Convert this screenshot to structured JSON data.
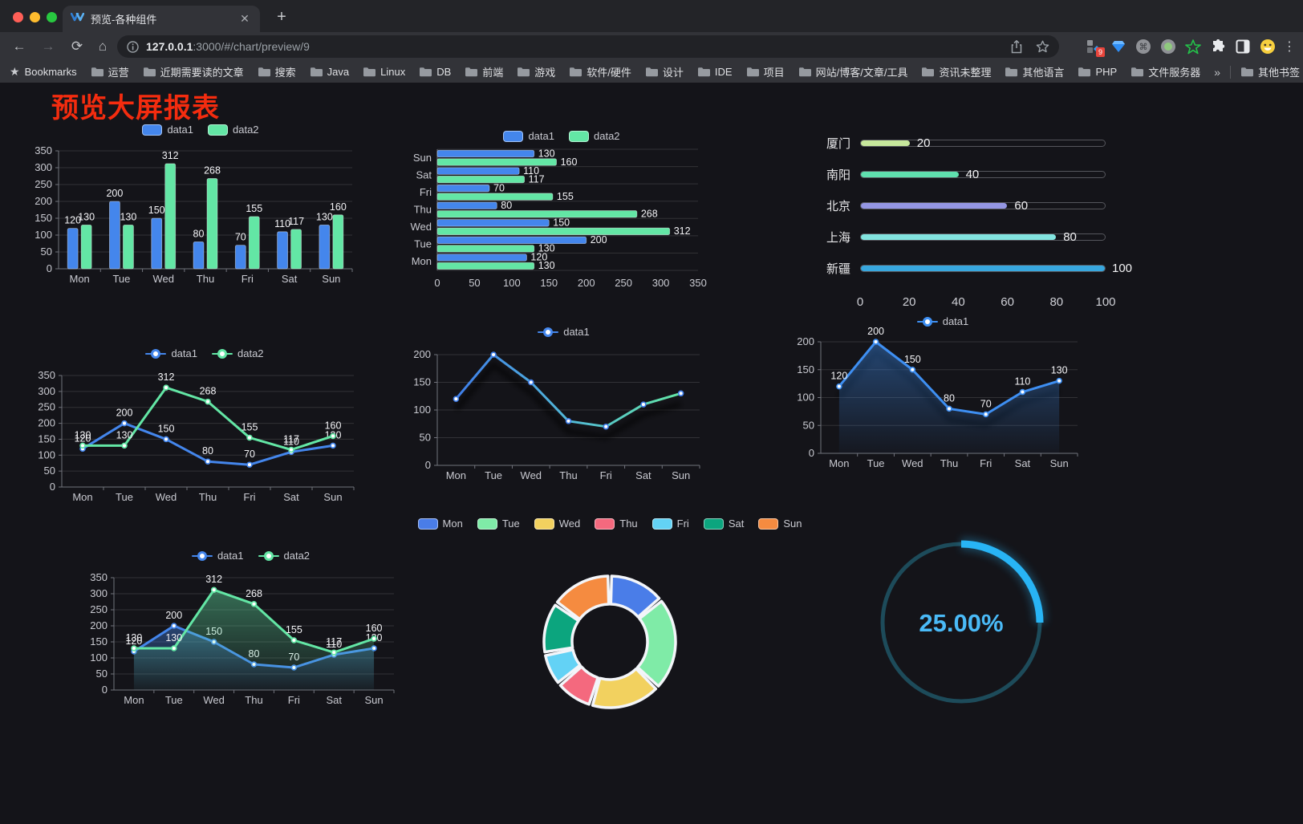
{
  "browser": {
    "tab": {
      "title": "预览-各种组件",
      "favicon": "vv-logo-icon"
    },
    "new_tab_label": "+",
    "close_label": "✕",
    "url_host": "127.0.0.1",
    "url_rest": ":3000/#/chart/preview/9",
    "extensions_badge": "9",
    "bookmarks": {
      "label": "Bookmarks",
      "folders": [
        "运营",
        "近期需要读的文章",
        "搜索",
        "Java",
        "Linux",
        "DB",
        "前端",
        "游戏",
        "软件/硬件",
        "设计",
        "IDE",
        "项目",
        "网站/博客/文章/工具",
        "资讯未整理",
        "其他语言",
        "PHP",
        "文件服务器"
      ],
      "overflow": "»",
      "other_bookmarks": "其他书签"
    }
  },
  "page": {
    "title": "预览大屏报表"
  },
  "colors": {
    "data1": "#4486EC",
    "data2": "#63E6A5",
    "accent_red_title": "#F42C0F"
  },
  "chart_data": [
    {
      "id": "c1",
      "type": "bar",
      "title": "",
      "categories": [
        "Mon",
        "Tue",
        "Wed",
        "Thu",
        "Fri",
        "Sat",
        "Sun"
      ],
      "series": [
        {
          "name": "data1",
          "color": "#4486EC",
          "values": [
            120,
            200,
            150,
            80,
            70,
            110,
            130
          ]
        },
        {
          "name": "data2",
          "color": "#63E6A5",
          "values": [
            130,
            130,
            312,
            268,
            155,
            117,
            160
          ]
        }
      ],
      "ylim": [
        0,
        350
      ],
      "ytick_step": 50,
      "grid": true,
      "legend_position": "top",
      "value_labels": true
    },
    {
      "id": "c2",
      "type": "bar",
      "orientation": "horizontal",
      "title": "",
      "categories_top_to_bottom": [
        "Sun",
        "Sat",
        "Fri",
        "Thu",
        "Wed",
        "Tue",
        "Mon"
      ],
      "series": [
        {
          "name": "data1",
          "color": "#4486EC",
          "values_top_to_bottom": [
            130,
            110,
            70,
            80,
            150,
            200,
            120
          ]
        },
        {
          "name": "data2",
          "color": "#63E6A5",
          "values_top_to_bottom": [
            160,
            117,
            155,
            268,
            312,
            130,
            130
          ]
        }
      ],
      "xlim": [
        0,
        350
      ],
      "xticks": [
        0,
        50,
        100,
        150,
        200,
        250,
        300,
        350
      ],
      "legend_position": "top",
      "value_labels": true
    },
    {
      "id": "c3",
      "type": "bar",
      "subtype": "progress",
      "items": [
        {
          "label": "厦门",
          "value": 20,
          "color": "#C7E89C"
        },
        {
          "label": "南阳",
          "value": 40,
          "color": "#5FE0AE"
        },
        {
          "label": "北京",
          "value": 60,
          "color": "#9496E3"
        },
        {
          "label": "上海",
          "value": 80,
          "color": "#82E4DF"
        },
        {
          "label": "新疆",
          "value": 100,
          "color": "#38A7DE"
        }
      ],
      "xlim": [
        0,
        100
      ],
      "xticks": [
        0,
        20,
        40,
        60,
        80,
        100
      ]
    },
    {
      "id": "c4",
      "type": "line",
      "title": "",
      "categories": [
        "Mon",
        "Tue",
        "Wed",
        "Thu",
        "Fri",
        "Sat",
        "Sun"
      ],
      "series": [
        {
          "name": "data1",
          "color": "#4486EC",
          "values": [
            120,
            200,
            150,
            80,
            70,
            110,
            130
          ]
        },
        {
          "name": "data2",
          "color": "#63E6A5",
          "values": [
            130,
            130,
            312,
            268,
            155,
            117,
            160
          ]
        }
      ],
      "ylim": [
        0,
        350
      ],
      "ytick_step": 50,
      "legend_position": "top",
      "value_labels": true
    },
    {
      "id": "c5",
      "type": "line",
      "title": "",
      "categories": [
        "Mon",
        "Tue",
        "Wed",
        "Thu",
        "Fri",
        "Sat",
        "Sun"
      ],
      "series": [
        {
          "name": "data1",
          "color": "#4486EC",
          "gradient": [
            "#3F7EEA",
            "#52B9D8",
            "#63E6A5"
          ],
          "values": [
            120,
            200,
            150,
            80,
            70,
            110,
            130
          ]
        }
      ],
      "ylim": [
        0,
        200
      ],
      "ytick_step": 50,
      "legend_position": "top",
      "value_labels": false
    },
    {
      "id": "c6",
      "type": "area",
      "title": "",
      "categories": [
        "Mon",
        "Tue",
        "Wed",
        "Thu",
        "Fri",
        "Sat",
        "Sun"
      ],
      "series": [
        {
          "name": "data1",
          "color": "#3E8FF2",
          "values": [
            120,
            200,
            150,
            80,
            70,
            110,
            130
          ]
        }
      ],
      "ylim": [
        0,
        200
      ],
      "ytick_step": 50,
      "legend_position": "top",
      "value_labels": true
    },
    {
      "id": "c7",
      "type": "area",
      "title": "",
      "categories": [
        "Mon",
        "Tue",
        "Wed",
        "Thu",
        "Fri",
        "Sat",
        "Sun"
      ],
      "series": [
        {
          "name": "data1",
          "color": "#4486EC",
          "values": [
            120,
            200,
            150,
            80,
            70,
            110,
            130
          ]
        },
        {
          "name": "data2",
          "color": "#63E6A5",
          "values": [
            130,
            130,
            312,
            268,
            155,
            117,
            160
          ]
        }
      ],
      "ylim": [
        0,
        350
      ],
      "ytick_step": 50,
      "legend_position": "top",
      "value_labels": true
    },
    {
      "id": "c8",
      "type": "pie",
      "subtype": "donut",
      "title": "",
      "items": [
        {
          "label": "Mon",
          "value": 120,
          "color": "#4A7DE8"
        },
        {
          "label": "Tue",
          "value": 200,
          "color": "#7FEBA7"
        },
        {
          "label": "Wed",
          "value": 150,
          "color": "#F2D15F"
        },
        {
          "label": "Thu",
          "value": 80,
          "color": "#F4697E"
        },
        {
          "label": "Fri",
          "value": 70,
          "color": "#63D2F5"
        },
        {
          "label": "Sat",
          "value": 110,
          "color": "#0CA57E"
        },
        {
          "label": "Sun",
          "value": 130,
          "color": "#F58B40"
        }
      ],
      "legend_position": "top"
    },
    {
      "id": "c9",
      "type": "gauge",
      "subtype": "ring-progress",
      "value_percent": 25,
      "label": "25.00%",
      "progress_color": "#28B4F5",
      "track_color": "#1D4B5A",
      "text_color": "#4ABAF7"
    }
  ]
}
